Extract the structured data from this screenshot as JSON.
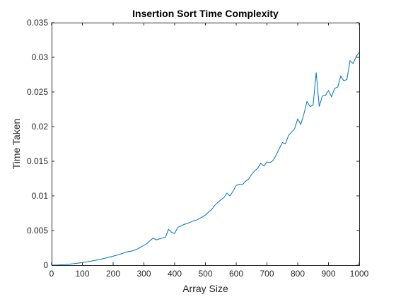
{
  "chart_data": {
    "type": "line",
    "title": "Insertion Sort Time Complexity",
    "xlabel": "Array Size",
    "ylabel": "Time Taken",
    "xlim": [
      0,
      1000
    ],
    "ylim": [
      0,
      0.035
    ],
    "xticks": [
      0,
      100,
      200,
      300,
      400,
      500,
      600,
      700,
      800,
      900,
      1000
    ],
    "yticks": [
      0,
      0.005,
      0.01,
      0.015,
      0.02,
      0.025,
      0.03,
      0.035
    ],
    "xtick_labels": [
      "0",
      "100",
      "200",
      "300",
      "400",
      "500",
      "600",
      "700",
      "800",
      "900",
      "1000"
    ],
    "ytick_labels": [
      "0",
      "0.005",
      "0.01",
      "0.015",
      "0.02",
      "0.025",
      "0.03",
      "0.035"
    ],
    "grid": false,
    "line_color": "#0072bd",
    "series": [
      {
        "x": [
          0,
          10,
          20,
          30,
          40,
          50,
          60,
          70,
          80,
          90,
          100,
          110,
          120,
          130,
          140,
          150,
          160,
          170,
          180,
          190,
          200,
          210,
          220,
          230,
          240,
          250,
          260,
          270,
          280,
          290,
          300,
          310,
          320,
          330,
          340,
          350,
          360,
          370,
          380,
          390,
          400,
          410,
          420,
          430,
          440,
          450,
          460,
          470,
          480,
          490,
          500,
          510,
          520,
          530,
          540,
          550,
          560,
          570,
          580,
          590,
          600,
          610,
          620,
          630,
          640,
          650,
          660,
          670,
          680,
          690,
          700,
          710,
          720,
          730,
          740,
          750,
          760,
          770,
          780,
          790,
          800,
          810,
          820,
          830,
          840,
          850,
          860,
          870,
          880,
          890,
          900,
          910,
          920,
          930,
          940,
          950,
          960,
          970,
          980,
          990,
          1000
        ],
        "y": [
          0,
          1e-05,
          3e-05,
          5e-05,
          8e-05,
          0.00012,
          0.00016,
          0.00021,
          0.00026,
          0.00032,
          0.00038,
          0.00045,
          0.00052,
          0.0006,
          0.00069,
          0.00078,
          0.00087,
          0.00097,
          0.00108,
          0.0012,
          0.0013,
          0.00142,
          0.00155,
          0.00168,
          0.00185,
          0.00196,
          0.00203,
          0.00217,
          0.00237,
          0.00261,
          0.00287,
          0.00313,
          0.00355,
          0.00392,
          0.00365,
          0.00379,
          0.00391,
          0.00404,
          0.00518,
          0.00475,
          0.00457,
          0.00545,
          0.00565,
          0.00587,
          0.00601,
          0.00618,
          0.00638,
          0.0065,
          0.00672,
          0.00696,
          0.00724,
          0.00765,
          0.00802,
          0.00862,
          0.00905,
          0.00942,
          0.00975,
          0.0104,
          0.01,
          0.0107,
          0.0115,
          0.0117,
          0.0116,
          0.0121,
          0.0124,
          0.0131,
          0.0136,
          0.014,
          0.0147,
          0.0143,
          0.0149,
          0.0148,
          0.0151,
          0.0159,
          0.0168,
          0.0177,
          0.0175,
          0.0187,
          0.0192,
          0.0197,
          0.0211,
          0.0203,
          0.0218,
          0.0236,
          0.0229,
          0.0231,
          0.0278,
          0.0229,
          0.0244,
          0.0245,
          0.0252,
          0.0243,
          0.0255,
          0.0257,
          0.0273,
          0.0266,
          0.0268,
          0.0295,
          0.0291,
          0.0301,
          0.0307
        ]
      }
    ]
  }
}
